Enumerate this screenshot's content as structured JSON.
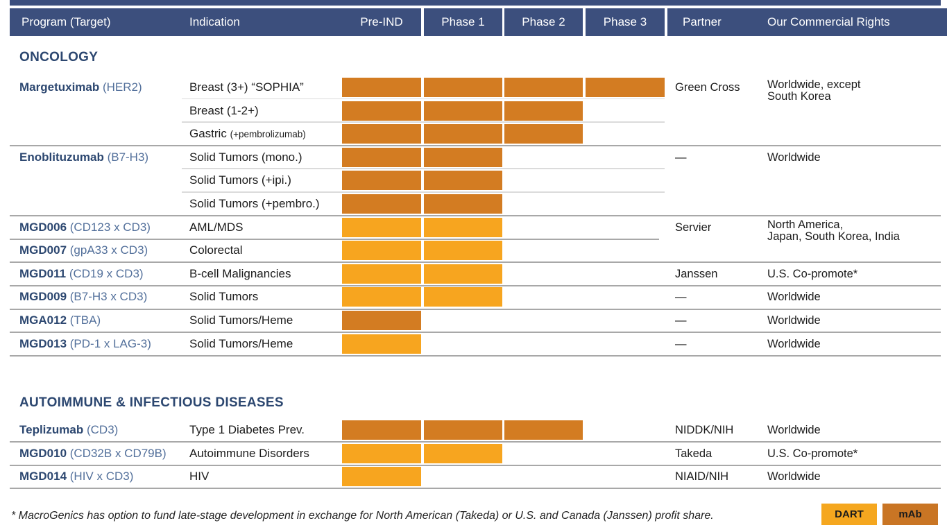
{
  "colors": {
    "header_bg": "#3C4F7D",
    "navy_text": "#2C4770",
    "target_text": "#53709B",
    "dart": "#F7A51F",
    "mab": "#D37C22",
    "legend_dart": "#F5A71F",
    "legend_mab": "#C97524"
  },
  "header": {
    "columns": [
      "Program (Target)",
      "Indication",
      "Pre-IND",
      "Phase 1",
      "Phase 2",
      "Phase 3",
      "Partner",
      "Our Commercial Rights"
    ]
  },
  "sections": [
    {
      "title": "ONCOLOGY",
      "groups": [
        {
          "program": "Margetuximab",
          "target": "(HER2)",
          "partner": "Green Cross",
          "rights": "Worldwide, except\nSouth Korea",
          "rows": [
            {
              "indication": "Breast (3+) “SOPHIA”",
              "note": "",
              "phases": 4,
              "type": "mab"
            },
            {
              "indication": "Breast (1-2+)",
              "note": "",
              "phases": 3,
              "type": "mab"
            },
            {
              "indication": "Gastric",
              "note": "(+pembrolizumab)",
              "phases": 3,
              "type": "mab"
            }
          ]
        },
        {
          "program": "Enoblituzumab",
          "target": "(B7-H3)",
          "partner": "—",
          "rights": "Worldwide",
          "rows": [
            {
              "indication": "Solid Tumors (mono.)",
              "note": "",
              "phases": 2,
              "type": "mab"
            },
            {
              "indication": "Solid Tumors (+ipi.)",
              "note": "",
              "phases": 2,
              "type": "mab"
            },
            {
              "indication": "Solid Tumors (+pembro.)",
              "note": "",
              "phases": 2,
              "type": "mab"
            }
          ]
        },
        {
          "program": "MGD006",
          "target": "(CD123 x CD3)",
          "partner": "Servier",
          "rights": "North America,\nJapan, South Korea, India",
          "rows": [
            {
              "indication": "AML/MDS",
              "note": "",
              "phases": 2,
              "type": "dart"
            }
          ]
        },
        {
          "program": "MGD007",
          "target": "(gpA33 x CD3)",
          "partner": "",
          "rights": "",
          "separator_before": "partial",
          "rows": [
            {
              "indication": "Colorectal",
              "note": "",
              "phases": 2,
              "type": "dart"
            }
          ]
        },
        {
          "program": "MGD011",
          "target": "(CD19 x CD3)",
          "partner": "Janssen",
          "rights": "U.S. Co-promote*",
          "rows": [
            {
              "indication": "B-cell Malignancies",
              "note": "",
              "phases": 2,
              "type": "dart"
            }
          ]
        },
        {
          "program": "MGD009",
          "target": "(B7-H3 x CD3)",
          "partner": "—",
          "rights": "Worldwide",
          "rows": [
            {
              "indication": "Solid Tumors",
              "note": "",
              "phases": 2,
              "type": "dart"
            }
          ]
        },
        {
          "program": "MGA012",
          "target": "(TBA)",
          "partner": "—",
          "rights": "Worldwide",
          "rows": [
            {
              "indication": "Solid Tumors/Heme",
              "note": "",
              "phases": 1,
              "type": "mab"
            }
          ]
        },
        {
          "program": "MGD013",
          "target": "(PD-1 x LAG-3)",
          "partner": "—",
          "rights": "Worldwide",
          "rows": [
            {
              "indication": "Solid Tumors/Heme",
              "note": "",
              "phases": 1,
              "type": "dart"
            }
          ]
        }
      ]
    },
    {
      "title": "AUTOIMMUNE & INFECTIOUS DISEASES",
      "groups": [
        {
          "program": "Teplizumab",
          "target": "(CD3)",
          "partner": "NIDDK/NIH",
          "rights": "Worldwide",
          "rows": [
            {
              "indication": "Type 1 Diabetes Prev.",
              "note": "",
              "phases": 3,
              "type": "mab"
            }
          ]
        },
        {
          "program": "MGD010",
          "target": "(CD32B x CD79B)",
          "partner": "Takeda",
          "rights": "U.S. Co-promote*",
          "rows": [
            {
              "indication": "Autoimmune Disorders",
              "note": "",
              "phases": 2,
              "type": "dart"
            }
          ]
        },
        {
          "program": "MGD014",
          "target": "(HIV x CD3)",
          "partner": "NIAID/NIH",
          "rights": "Worldwide",
          "rows": [
            {
              "indication": "HIV",
              "note": "",
              "phases": 1,
              "type": "dart"
            }
          ]
        }
      ]
    }
  ],
  "legend": [
    {
      "label": "DART",
      "type": "dart"
    },
    {
      "label": "mAb",
      "type": "mab"
    }
  ],
  "footnote": "* MacroGenics has option to fund late-stage development in exchange for North American (Takeda) or U.S. and Canada (Janssen) profit share.",
  "chart_data": {
    "type": "table",
    "stages": [
      "Pre-IND",
      "Phase 1",
      "Phase 2",
      "Phase 3"
    ],
    "columns": [
      "Program (Target)",
      "Indication",
      "Pre-IND",
      "Phase 1",
      "Phase 2",
      "Phase 3",
      "Partner",
      "Our Commercial Rights"
    ],
    "legend": [
      {
        "label": "DART",
        "color": "#F5A71F"
      },
      {
        "label": "mAb",
        "color": "#C97524"
      }
    ],
    "rows": [
      {
        "section": "ONCOLOGY",
        "program": "Margetuximab",
        "target": "HER2",
        "indication": "Breast (3+) “SOPHIA”",
        "modality": "mAb",
        "stage_reached": "Phase 3",
        "partner": "Green Cross",
        "commercial_rights": "Worldwide, except South Korea"
      },
      {
        "section": "ONCOLOGY",
        "program": "Margetuximab",
        "target": "HER2",
        "indication": "Breast (1-2+)",
        "modality": "mAb",
        "stage_reached": "Phase 2",
        "partner": "Green Cross",
        "commercial_rights": "Worldwide, except South Korea"
      },
      {
        "section": "ONCOLOGY",
        "program": "Margetuximab",
        "target": "HER2",
        "indication": "Gastric (+pembrolizumab)",
        "modality": "mAb",
        "stage_reached": "Phase 2",
        "partner": "Green Cross",
        "commercial_rights": "Worldwide, except South Korea"
      },
      {
        "section": "ONCOLOGY",
        "program": "Enoblituzumab",
        "target": "B7-H3",
        "indication": "Solid Tumors (mono.)",
        "modality": "mAb",
        "stage_reached": "Phase 1",
        "partner": "—",
        "commercial_rights": "Worldwide"
      },
      {
        "section": "ONCOLOGY",
        "program": "Enoblituzumab",
        "target": "B7-H3",
        "indication": "Solid Tumors (+ipi.)",
        "modality": "mAb",
        "stage_reached": "Phase 1",
        "partner": "—",
        "commercial_rights": "Worldwide"
      },
      {
        "section": "ONCOLOGY",
        "program": "Enoblituzumab",
        "target": "B7-H3",
        "indication": "Solid Tumors (+pembro.)",
        "modality": "mAb",
        "stage_reached": "Phase 1",
        "partner": "—",
        "commercial_rights": "Worldwide"
      },
      {
        "section": "ONCOLOGY",
        "program": "MGD006",
        "target": "CD123 x CD3",
        "indication": "AML/MDS",
        "modality": "DART",
        "stage_reached": "Phase 1",
        "partner": "Servier",
        "commercial_rights": "North America, Japan, South Korea, India"
      },
      {
        "section": "ONCOLOGY",
        "program": "MGD007",
        "target": "gpA33 x CD3",
        "indication": "Colorectal",
        "modality": "DART",
        "stage_reached": "Phase 1",
        "partner": "Servier",
        "commercial_rights": "North America, Japan, South Korea, India"
      },
      {
        "section": "ONCOLOGY",
        "program": "MGD011",
        "target": "CD19 x CD3",
        "indication": "B-cell Malignancies",
        "modality": "DART",
        "stage_reached": "Phase 1",
        "partner": "Janssen",
        "commercial_rights": "U.S. Co-promote*"
      },
      {
        "section": "ONCOLOGY",
        "program": "MGD009",
        "target": "B7-H3 x CD3",
        "indication": "Solid Tumors",
        "modality": "DART",
        "stage_reached": "Phase 1",
        "partner": "—",
        "commercial_rights": "Worldwide"
      },
      {
        "section": "ONCOLOGY",
        "program": "MGA012",
        "target": "TBA",
        "indication": "Solid Tumors/Heme",
        "modality": "mAb",
        "stage_reached": "Pre-IND",
        "partner": "—",
        "commercial_rights": "Worldwide"
      },
      {
        "section": "ONCOLOGY",
        "program": "MGD013",
        "target": "PD-1 x LAG-3",
        "indication": "Solid Tumors/Heme",
        "modality": "DART",
        "stage_reached": "Pre-IND",
        "partner": "—",
        "commercial_rights": "Worldwide"
      },
      {
        "section": "AUTOIMMUNE & INFECTIOUS DISEASES",
        "program": "Teplizumab",
        "target": "CD3",
        "indication": "Type 1 Diabetes Prev.",
        "modality": "mAb",
        "stage_reached": "Phase 2",
        "partner": "NIDDK/NIH",
        "commercial_rights": "Worldwide"
      },
      {
        "section": "AUTOIMMUNE & INFECTIOUS DISEASES",
        "program": "MGD010",
        "target": "CD32B x CD79B",
        "indication": "Autoimmune Disorders",
        "modality": "DART",
        "stage_reached": "Phase 1",
        "partner": "Takeda",
        "commercial_rights": "U.S. Co-promote*"
      },
      {
        "section": "AUTOIMMUNE & INFECTIOUS DISEASES",
        "program": "MGD014",
        "target": "HIV x CD3",
        "indication": "HIV",
        "modality": "DART",
        "stage_reached": "Pre-IND",
        "partner": "NIAID/NIH",
        "commercial_rights": "Worldwide"
      }
    ]
  }
}
